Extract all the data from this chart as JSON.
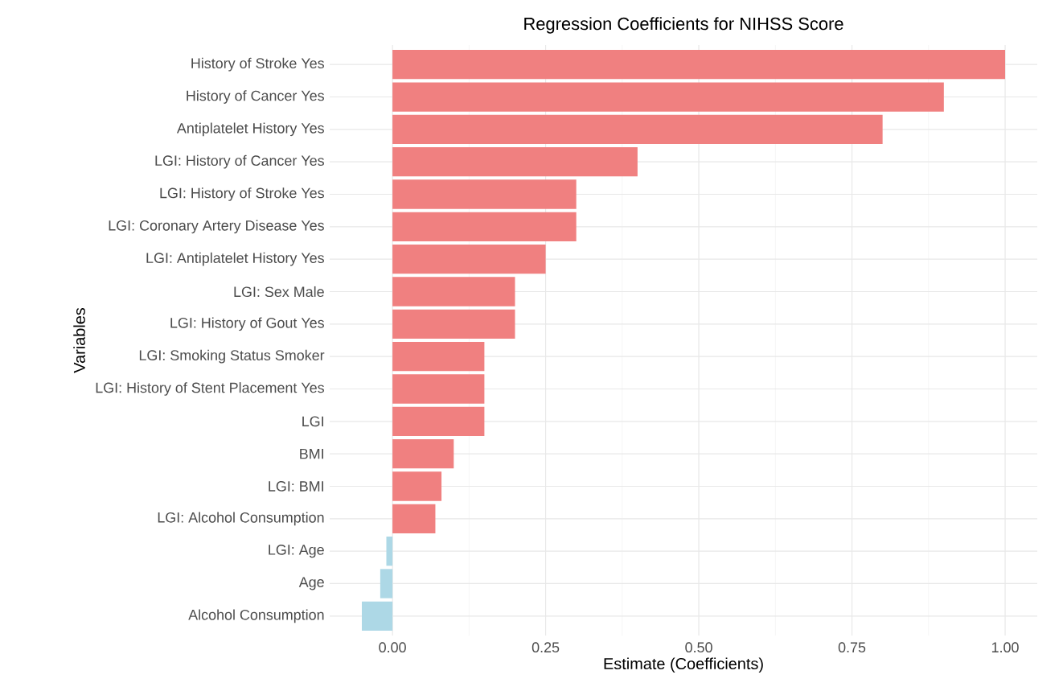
{
  "chart_data": {
    "type": "bar",
    "orientation": "horizontal",
    "title": "Regression Coefficients for NIHSS Score",
    "xlabel": "Estimate (Coefficients)",
    "ylabel": "Variables",
    "categories": [
      "History of Stroke Yes",
      "History of Cancer Yes",
      "Antiplatelet History Yes",
      "LGI: History of Cancer Yes",
      "LGI: History of Stroke Yes",
      "LGI: Coronary Artery Disease Yes",
      "LGI: Antiplatelet History Yes",
      "LGI: Sex Male",
      "LGI: History of Gout Yes",
      "LGI: Smoking Status Smoker",
      "LGI: History of Stent Placement Yes",
      "LGI",
      "BMI",
      "LGI: BMI",
      "LGI: Alcohol Consumption",
      "LGI: Age",
      "Age",
      "Alcohol Consumption"
    ],
    "values": [
      1.0,
      0.9,
      0.8,
      0.4,
      0.3,
      0.3,
      0.25,
      0.2,
      0.2,
      0.15,
      0.15,
      0.15,
      0.1,
      0.08,
      0.07,
      -0.01,
      -0.02,
      -0.05
    ],
    "colors": [
      "#f08080",
      "#f08080",
      "#f08080",
      "#f08080",
      "#f08080",
      "#f08080",
      "#f08080",
      "#f08080",
      "#f08080",
      "#f08080",
      "#f08080",
      "#f08080",
      "#f08080",
      "#f08080",
      "#f08080",
      "#add8e6",
      "#add8e6",
      "#add8e6"
    ],
    "xlim": [
      -0.1025,
      1.0525
    ],
    "xticks": [
      {
        "value": 0,
        "label": "0.00"
      },
      {
        "value": 0.25,
        "label": "0.25"
      },
      {
        "value": 0.5,
        "label": "0.50"
      },
      {
        "value": 0.75,
        "label": "0.75"
      },
      {
        "value": 1.0,
        "label": "1.00"
      }
    ],
    "grid": true
  }
}
